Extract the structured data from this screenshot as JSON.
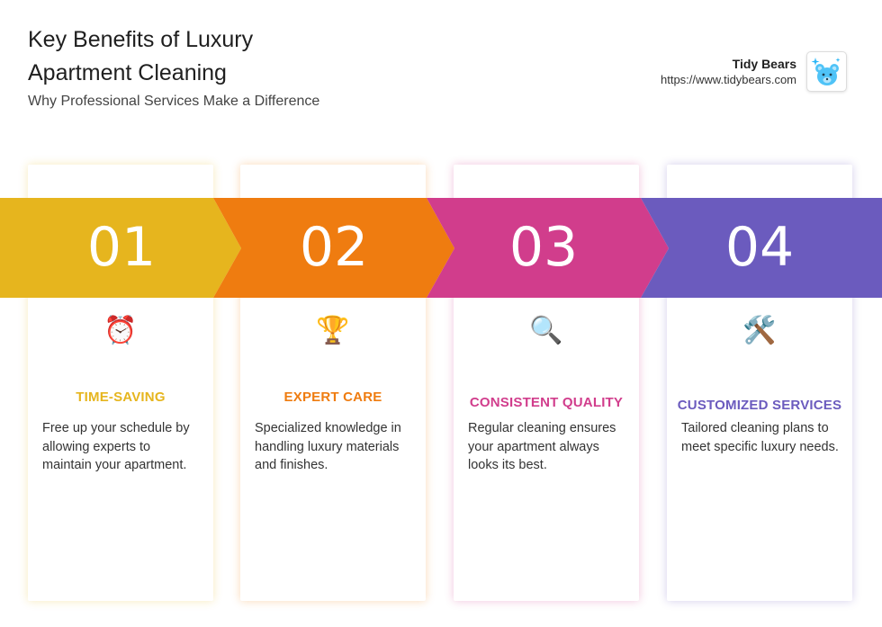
{
  "header": {
    "title": "Key Benefits of Luxury Apartment Cleaning",
    "subtitle": "Why Professional Services Make a Difference"
  },
  "brand": {
    "name": "Tidy Bears",
    "url": "https://www.tidybears.com",
    "logo_icon": "teddy-bear-icon"
  },
  "benefits": [
    {
      "number": "01",
      "icon": "⏰",
      "icon_name": "alarm-clock-icon",
      "title": "TIME-SAVING",
      "description": "Free up your schedule by allowing experts to maintain your apartment.",
      "color": "#E6B51E"
    },
    {
      "number": "02",
      "icon": "🏆",
      "icon_name": "trophy-icon",
      "title": "EXPERT CARE",
      "description": "Specialized knowledge in handling luxury materials and finishes.",
      "color": "#EF7C10"
    },
    {
      "number": "03",
      "icon": "🔍",
      "icon_name": "magnifying-glass-icon",
      "title": "CONSISTENT QUALITY",
      "description": "Regular cleaning ensures your apartment always looks its best.",
      "color": "#D13D8C"
    },
    {
      "number": "04",
      "icon": "🛠️",
      "icon_name": "tools-icon",
      "title": "CUSTOMIZED SERVICES",
      "description": "Tailored cleaning plans to meet specific luxury needs.",
      "color": "#6B5BBE"
    }
  ]
}
